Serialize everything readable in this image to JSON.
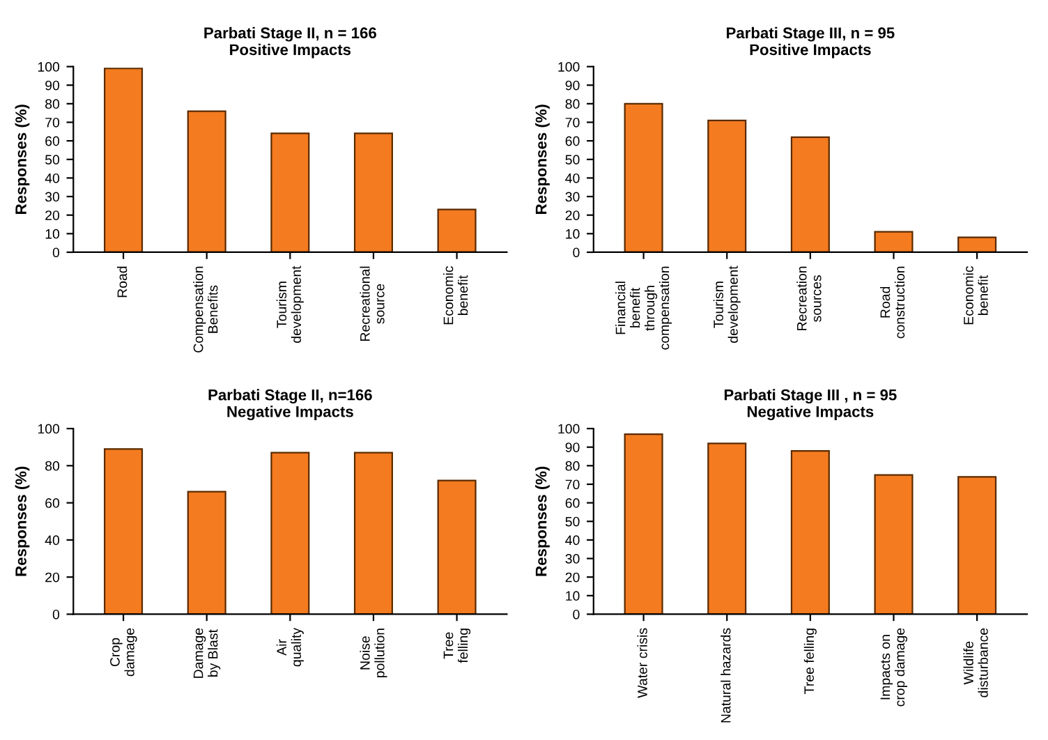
{
  "chart_data": [
    {
      "type": "bar",
      "title": "Parbati Stage II, n = 166",
      "subtitle": "Positive Impacts",
      "ylabel": "Responses (%)",
      "categories": [
        "Road",
        "Compensation\nBenefits",
        "Tourism\ndevelopment",
        "Recreational\nsource",
        "Economic\nbenefit"
      ],
      "values": [
        99,
        76,
        64,
        64,
        23
      ],
      "color": "#f47b20",
      "ylim": [
        0,
        100
      ],
      "yticks": [
        0,
        10,
        20,
        30,
        40,
        50,
        60,
        70,
        80,
        90,
        100
      ],
      "grid": false
    },
    {
      "type": "bar",
      "title": "Parbati Stage III, n = 95",
      "subtitle": "Positive Impacts",
      "ylabel": "Responses (%)",
      "categories": [
        "Financial\nbenefit\nthrough\ncompensation",
        "Tourism\ndevelopment",
        "Recreation\nsources",
        "Road\nconstruction",
        "Economic\nbenefit"
      ],
      "values": [
        80,
        71,
        62,
        11,
        8
      ],
      "color": "#f47b20",
      "ylim": [
        0,
        100
      ],
      "yticks": [
        0,
        10,
        20,
        30,
        40,
        50,
        60,
        70,
        80,
        90,
        100
      ],
      "grid": false
    },
    {
      "type": "bar",
      "title": "Parbati Stage II, n=166",
      "subtitle": "Negative Impacts",
      "ylabel": "Responses (%)",
      "categories": [
        "Crop\ndamage",
        "Damage\nby Blast",
        "Air\nquality",
        "Noise\npollution",
        "Tree\nfelling"
      ],
      "values": [
        89,
        66,
        87,
        87,
        72
      ],
      "color": "#f47b20",
      "ylim": [
        0,
        100
      ],
      "yticks": [
        0,
        20,
        40,
        60,
        80,
        100
      ],
      "grid": false
    },
    {
      "type": "bar",
      "title": "Parbati Stage III , n = 95",
      "subtitle": "Negative Impacts",
      "ylabel": "Responses (%)",
      "categories": [
        "Water crisis",
        "Natural hazards",
        "Tree felling",
        "Impacts on\ncrop damage",
        "Wildlife\ndisturbance"
      ],
      "values": [
        97,
        92,
        88,
        75,
        74
      ],
      "color": "#f47b20",
      "ylim": [
        0,
        100
      ],
      "yticks": [
        0,
        10,
        20,
        30,
        40,
        50,
        60,
        70,
        80,
        90,
        100
      ],
      "grid": false
    }
  ]
}
